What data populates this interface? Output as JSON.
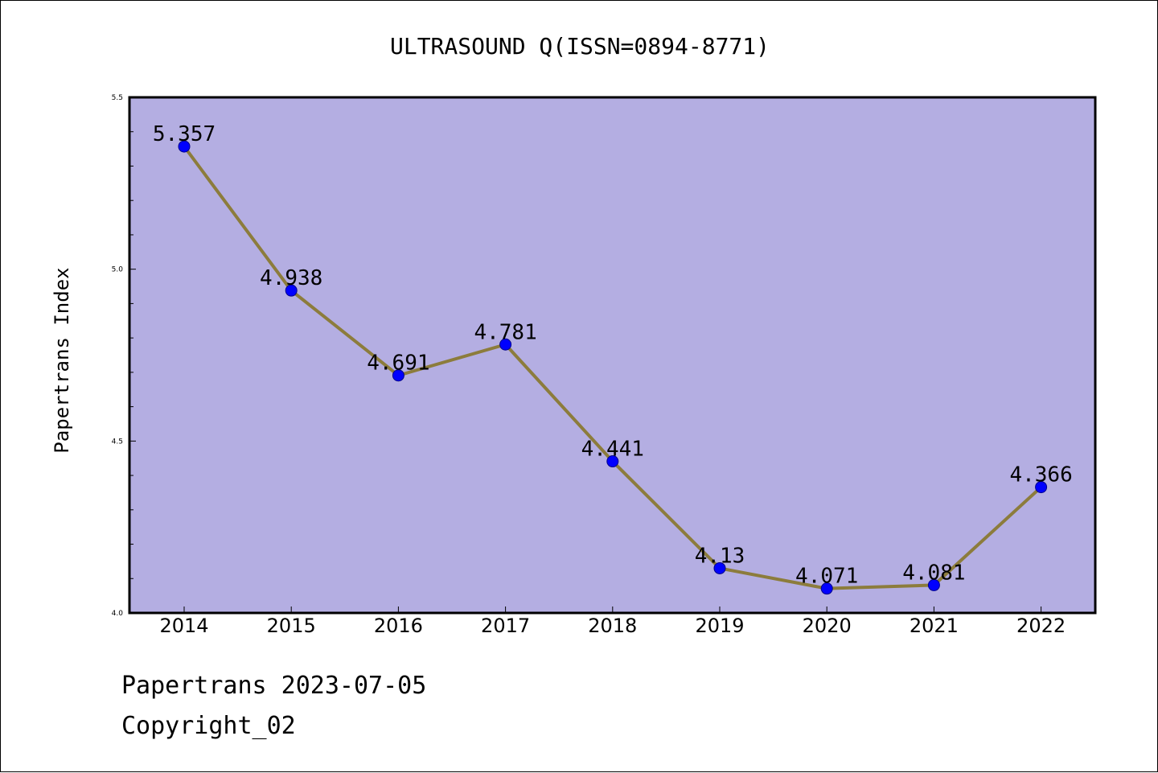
{
  "footer": {
    "line1": "Papertrans 2023-07-05",
    "line2": "Copyright_02"
  },
  "colors": {
    "plot_background": "#b4aee2",
    "line": "#8c7c3c",
    "marker": "#0000ff",
    "marker_edge": "#00008b"
  },
  "chart_data": {
    "type": "line",
    "title": "ULTRASOUND Q(ISSN=0894-8771)",
    "xlabel": "",
    "ylabel": "Papertrans Index",
    "categories": [
      "2014",
      "2015",
      "2016",
      "2017",
      "2018",
      "2019",
      "2020",
      "2021",
      "2022"
    ],
    "series": [
      {
        "values": [
          5.357,
          4.938,
          4.691,
          4.781,
          4.441,
          4.13,
          4.071,
          4.081,
          4.366
        ],
        "labels": [
          "5.357",
          "4.938",
          "4.691",
          "4.781",
          "4.441",
          "4.13",
          "4.071",
          "4.081",
          "4.366"
        ]
      }
    ],
    "ylim": [
      4.0,
      5.5
    ],
    "yticks": [
      "4.0",
      "4.5",
      "5.0",
      "5.5"
    ],
    "grid": false,
    "legend": "none"
  }
}
